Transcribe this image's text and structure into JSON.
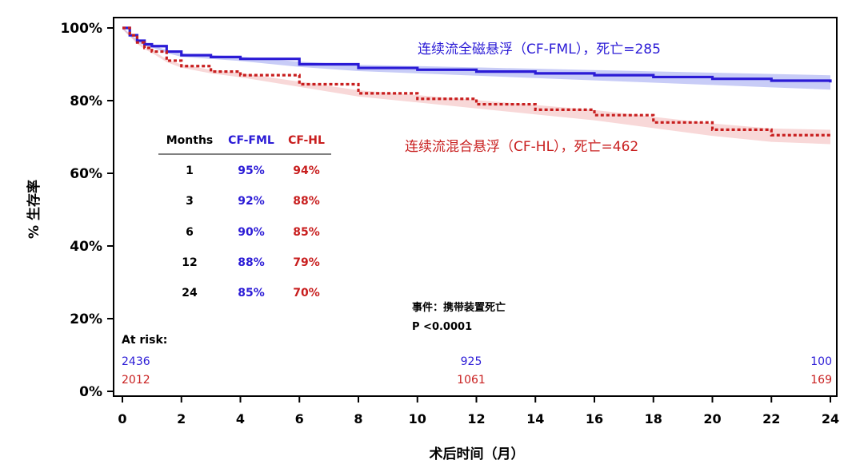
{
  "colors": {
    "fml": "#2b1bd6",
    "hl": "#c81e1e",
    "hl_band": "#f2b8b8",
    "fml_band": "#9aa3f0"
  },
  "chart_data": {
    "type": "line",
    "title": "",
    "xlabel": "术后时间（月）",
    "ylabel": "% 生存率",
    "xlim": [
      0,
      24
    ],
    "ylim": [
      0,
      100
    ],
    "x_ticks": [
      "0",
      "2",
      "4",
      "6",
      "8",
      "10",
      "12",
      "14",
      "16",
      "18",
      "20",
      "22",
      "24"
    ],
    "y_ticks": [
      "0%",
      "20%",
      "40%",
      "60%",
      "80%",
      "100%"
    ],
    "series": [
      {
        "name": "连续流全磁悬浮（CF-FML），死亡=285",
        "color_key": "fml",
        "style": "solid",
        "x": [
          0,
          0.25,
          0.5,
          0.75,
          1,
          1.5,
          2,
          3,
          4,
          6,
          8,
          10,
          12,
          14,
          16,
          18,
          20,
          22,
          24
        ],
        "y": [
          100,
          98,
          96.5,
          95.5,
          95,
          93.5,
          92.5,
          92,
          91.5,
          90,
          89,
          88.5,
          88,
          87.5,
          87,
          86.5,
          86,
          85.5,
          85
        ]
      },
      {
        "name": "连续流混合悬浮（CF-HL），死亡=462",
        "color_key": "hl",
        "style": "dashed",
        "x": [
          0,
          0.25,
          0.5,
          0.75,
          1,
          1.5,
          2,
          3,
          4,
          6,
          8,
          10,
          12,
          14,
          16,
          18,
          20,
          22,
          24
        ],
        "y": [
          100,
          98,
          96,
          94.5,
          93.5,
          91,
          89.5,
          88,
          87,
          84.5,
          82,
          80.5,
          79,
          77.5,
          76,
          74,
          72,
          70.5,
          70
        ]
      }
    ],
    "table": {
      "headers": [
        "Months",
        "CF-FML",
        "CF-HL"
      ],
      "rows": [
        [
          "1",
          "95%",
          "94%"
        ],
        [
          "3",
          "92%",
          "88%"
        ],
        [
          "6",
          "90%",
          "85%"
        ],
        [
          "12",
          "88%",
          "79%"
        ],
        [
          "24",
          "85%",
          "70%"
        ]
      ]
    },
    "at_risk": {
      "label": "At risk:",
      "fml": [
        "2436",
        "925",
        "100"
      ],
      "hl": [
        "2012",
        "1061",
        "169"
      ]
    },
    "annotations": [
      "事件：携带装置死亡",
      "P <0.0001"
    ]
  }
}
